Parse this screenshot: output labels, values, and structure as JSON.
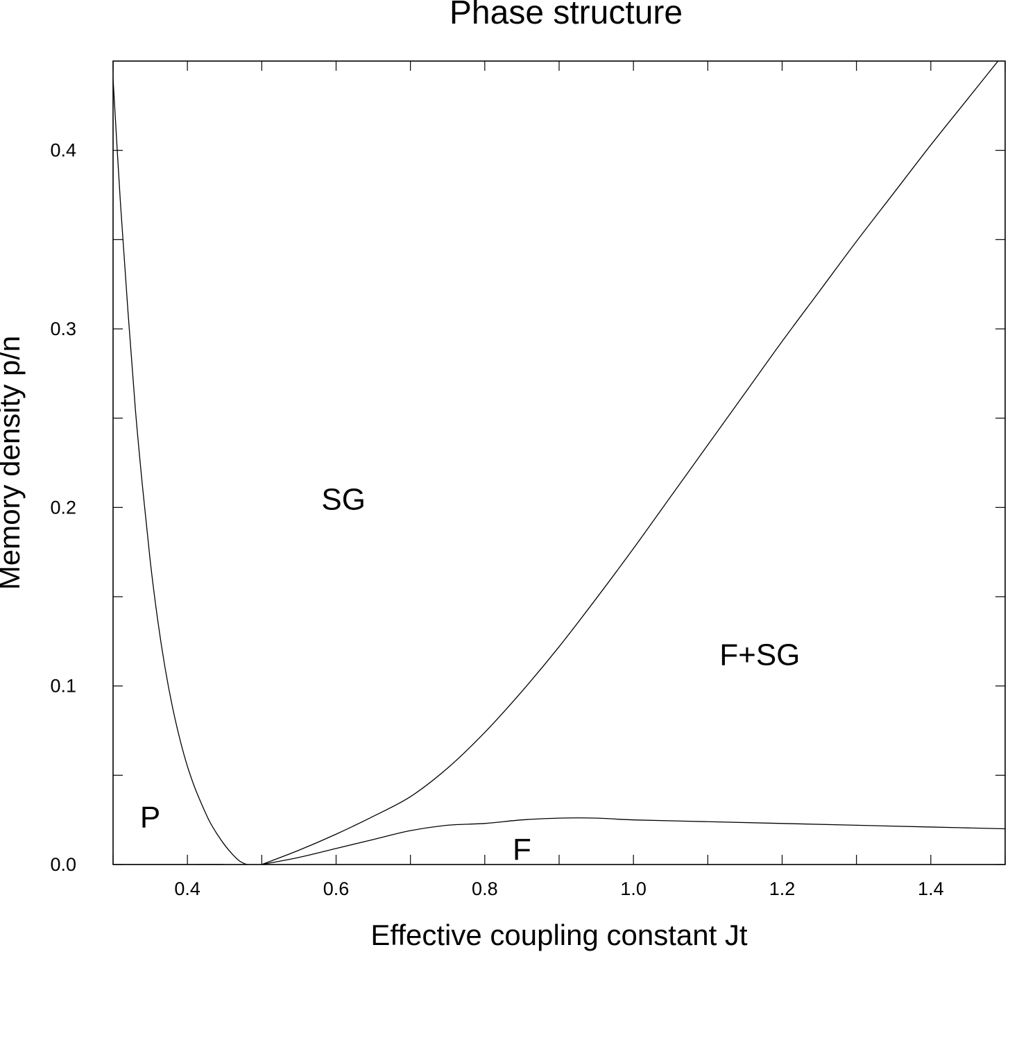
{
  "chart_data": {
    "type": "line",
    "title": "Phase structure",
    "xlabel": "Effective coupling constant Jt",
    "ylabel": "Memory density p/n",
    "xlim": [
      0.3,
      1.5
    ],
    "ylim": [
      0.0,
      0.45
    ],
    "x_ticks": [
      0.4,
      0.6,
      0.8,
      1.0,
      1.2,
      1.4
    ],
    "x_tick_labels": [
      "0.4",
      "0.6",
      "0.8",
      "1.0",
      "1.2",
      "1.4"
    ],
    "x_minor_ticks": [
      0.3,
      0.5,
      0.7,
      0.9,
      1.1,
      1.3,
      1.5
    ],
    "y_ticks": [
      0.0,
      0.1,
      0.2,
      0.3,
      0.4
    ],
    "y_tick_labels": [
      "0.0",
      "0.1",
      "0.2",
      "0.3",
      "0.4"
    ],
    "y_minor_ticks": [
      0.05,
      0.15,
      0.25,
      0.35
    ],
    "grid": false,
    "legend": "none",
    "line_color": "#000000",
    "series": [
      {
        "x": [
          0.3,
          0.31,
          0.32,
          0.33,
          0.34,
          0.35,
          0.36,
          0.37,
          0.38,
          0.39,
          0.4,
          0.41,
          0.42,
          0.43,
          0.44,
          0.45,
          0.46,
          0.47,
          0.48,
          0.49,
          0.5
        ],
        "y": [
          0.44,
          0.37,
          0.31,
          0.255,
          0.21,
          0.17,
          0.137,
          0.11,
          0.088,
          0.07,
          0.055,
          0.043,
          0.033,
          0.024,
          0.017,
          0.011,
          0.006,
          0.002,
          0.0,
          -0.001,
          0.0
        ]
      },
      {
        "x": [
          0.3,
          0.35,
          0.4,
          0.45,
          0.48,
          0.5
        ],
        "y": [
          0.0,
          0.0,
          0.0,
          0.0,
          -0.001,
          0.0
        ]
      },
      {
        "x": [
          0.5,
          0.55,
          0.6,
          0.65,
          0.7,
          0.75,
          0.8,
          0.85,
          0.9,
          0.95,
          1.0,
          1.05,
          1.1,
          1.15,
          1.2,
          1.25,
          1.3,
          1.35,
          1.4,
          1.45,
          1.5
        ],
        "y": [
          0.0,
          0.008,
          0.017,
          0.027,
          0.038,
          0.054,
          0.074,
          0.097,
          0.122,
          0.149,
          0.177,
          0.206,
          0.235,
          0.264,
          0.293,
          0.321,
          0.349,
          0.376,
          0.403,
          0.429,
          0.455
        ]
      },
      {
        "x": [
          0.5,
          0.55,
          0.6,
          0.65,
          0.7,
          0.75,
          0.8,
          0.85,
          0.9,
          0.95,
          1.0,
          1.1,
          1.2,
          1.3,
          1.4,
          1.5
        ],
        "y": [
          0.0,
          0.004,
          0.009,
          0.014,
          0.019,
          0.022,
          0.023,
          0.025,
          0.026,
          0.026,
          0.025,
          0.024,
          0.023,
          0.022,
          0.021,
          0.02
        ]
      }
    ],
    "annotations": [
      {
        "text": "SG",
        "x": 0.61,
        "y": 0.205
      },
      {
        "text": "F+SG",
        "x": 1.17,
        "y": 0.118
      },
      {
        "text": "P",
        "x": 0.35,
        "y": 0.027
      },
      {
        "text": "F",
        "x": 0.85,
        "y": 0.009
      }
    ]
  }
}
